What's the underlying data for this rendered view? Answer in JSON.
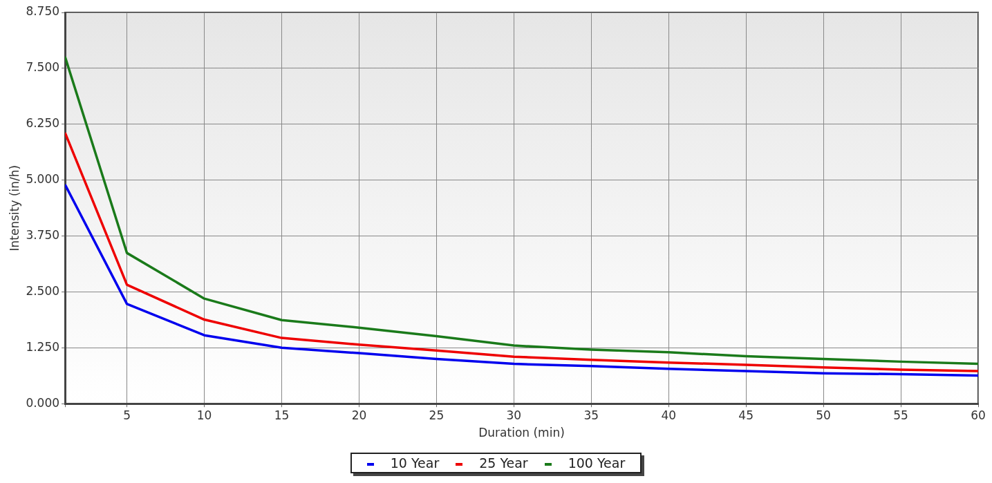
{
  "chart_data": {
    "type": "line",
    "xlabel": "Duration (min)",
    "ylabel": "Intensity (in/h)",
    "x": [
      1,
      5,
      10,
      15,
      20,
      25,
      30,
      35,
      40,
      45,
      50,
      55,
      60
    ],
    "xlim": [
      1,
      60
    ],
    "xticks": [
      {
        "value": 1,
        "label": null
      },
      5,
      10,
      15,
      20,
      25,
      30,
      35,
      40,
      45,
      50,
      55,
      60
    ],
    "ylim": [
      0,
      8.75
    ],
    "yticks": [
      {
        "value": 0,
        "label": "0.000"
      },
      {
        "value": 1.25,
        "label": "1.250"
      },
      {
        "value": 2.5,
        "label": "2.500"
      },
      {
        "value": 3.75,
        "label": "3.750"
      },
      {
        "value": 5,
        "label": "5.000"
      },
      {
        "value": 6.25,
        "label": "6.250"
      },
      {
        "value": 7.5,
        "label": "7.500"
      },
      {
        "value": 8.75,
        "label": "8.750"
      }
    ],
    "grid": true,
    "legend": "bottom",
    "marker": "none",
    "line_style": "solid",
    "series": [
      {
        "name": "10 Year",
        "color": "#0000ee",
        "values": [
          4.9,
          2.23,
          1.53,
          1.25,
          1.13,
          1.0,
          0.89,
          0.84,
          0.78,
          0.73,
          0.68,
          0.66,
          0.63
        ]
      },
      {
        "name": "25 Year",
        "color": "#ee0000",
        "values": [
          6.06,
          2.66,
          1.88,
          1.47,
          1.32,
          1.19,
          1.05,
          0.98,
          0.92,
          0.87,
          0.81,
          0.76,
          0.73
        ]
      },
      {
        "name": "100 Year",
        "color": "#1a7a1a",
        "values": [
          7.76,
          3.37,
          2.35,
          1.87,
          1.7,
          1.51,
          1.3,
          1.21,
          1.15,
          1.06,
          1.0,
          0.94,
          0.89
        ]
      }
    ]
  }
}
